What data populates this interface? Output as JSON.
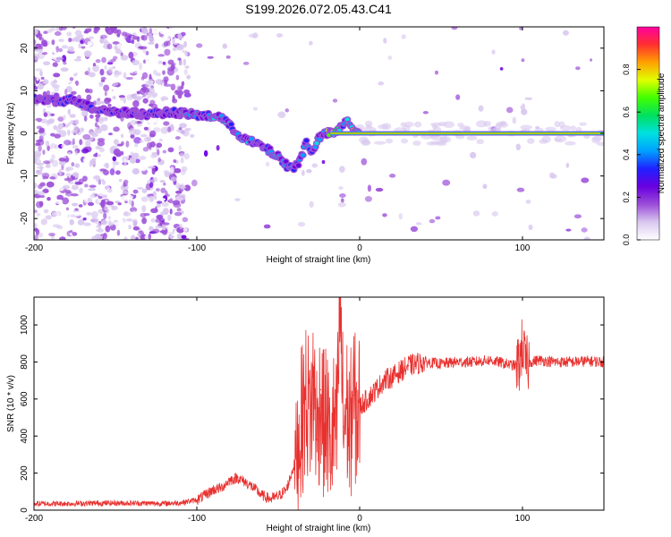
{
  "title": "S199.2026.072.05.43.C41",
  "chart_data": [
    {
      "type": "heatmap",
      "xlabel": "Height of straight line (km)",
      "ylabel": "Frequency (Hz)",
      "xlim": [
        -200,
        150
      ],
      "ylim": [
        -25,
        25
      ],
      "x_ticks": [
        -200,
        -100,
        0,
        100
      ],
      "y_ticks": [
        -20,
        -10,
        0,
        10,
        20
      ],
      "grid": false,
      "colorbar": {
        "label": "Normalized spectral amplitude",
        "range": [
          0,
          1
        ],
        "ticks": [
          "0.0",
          "0.2",
          "0.4",
          "0.6",
          "0.8"
        ],
        "colors": [
          "#ffffff",
          "#d9c8ef",
          "#9b4dd8",
          "#6a00e0",
          "#2020ff",
          "#00a0ff",
          "#00e0e0",
          "#00e060",
          "#40ff00",
          "#e0ff00",
          "#ffa000",
          "#ff3030",
          "#ff00a0"
        ]
      },
      "ridge": [
        {
          "x": -200,
          "y": 8
        },
        {
          "x": -185,
          "y": 7.5
        },
        {
          "x": -175,
          "y": 8
        },
        {
          "x": -165,
          "y": 6
        },
        {
          "x": -150,
          "y": 5
        },
        {
          "x": -130,
          "y": 4.5
        },
        {
          "x": -115,
          "y": 5
        },
        {
          "x": -105,
          "y": 4.5
        },
        {
          "x": -95,
          "y": 4
        },
        {
          "x": -85,
          "y": 4
        },
        {
          "x": -78,
          "y": 1
        },
        {
          "x": -70,
          "y": -1.5
        },
        {
          "x": -60,
          "y": -3
        },
        {
          "x": -50,
          "y": -5.5
        },
        {
          "x": -45,
          "y": -7.5
        },
        {
          "x": -40,
          "y": -8
        },
        {
          "x": -36,
          "y": -6
        },
        {
          "x": -33,
          "y": -2
        },
        {
          "x": -30,
          "y": -4
        },
        {
          "x": -27,
          "y": -3
        },
        {
          "x": -25,
          "y": -1
        },
        {
          "x": -20,
          "y": 0
        },
        {
          "x": -15,
          "y": 0
        },
        {
          "x": -10,
          "y": 2
        },
        {
          "x": -7,
          "y": 3
        },
        {
          "x": -3,
          "y": 0.5
        },
        {
          "x": 0,
          "y": 0
        },
        {
          "x": 150,
          "y": 0
        }
      ]
    },
    {
      "type": "line",
      "xlabel": "Height of straight line (km)",
      "ylabel": "SNR (10 * v/v)",
      "xlim": [
        -200,
        150
      ],
      "ylim": [
        0,
        1150
      ],
      "x_ticks": [
        -200,
        -100,
        0,
        100
      ],
      "y_ticks": [
        0,
        200,
        400,
        600,
        800,
        1000
      ],
      "grid": false,
      "series": [
        {
          "color": "#e8312f",
          "x": [
            -200,
            -180,
            -160,
            -140,
            -120,
            -110,
            -100,
            -95,
            -90,
            -85,
            -80,
            -75,
            -70,
            -65,
            -60,
            -55,
            -50,
            -45,
            -40,
            -36,
            -33,
            -30,
            -28,
            -26,
            -24,
            -22,
            -20,
            -18,
            -16,
            -14,
            -12,
            -10,
            -8,
            -6,
            -4,
            -2,
            0,
            5,
            10,
            15,
            20,
            25,
            30,
            40,
            50,
            60,
            70,
            80,
            90,
            95,
            98,
            100,
            102,
            105,
            110,
            120,
            130,
            140,
            150
          ],
          "y": [
            35,
            35,
            38,
            38,
            36,
            40,
            55,
            80,
            110,
            120,
            160,
            175,
            150,
            120,
            80,
            60,
            75,
            110,
            250,
            450,
            600,
            520,
            700,
            380,
            650,
            450,
            500,
            300,
            450,
            400,
            1130,
            450,
            550,
            400,
            620,
            500,
            560,
            600,
            650,
            700,
            720,
            750,
            780,
            800,
            790,
            800,
            800,
            810,
            790,
            780,
            790,
            900,
            780,
            800,
            810,
            800,
            800,
            805,
            800
          ]
        }
      ]
    }
  ]
}
